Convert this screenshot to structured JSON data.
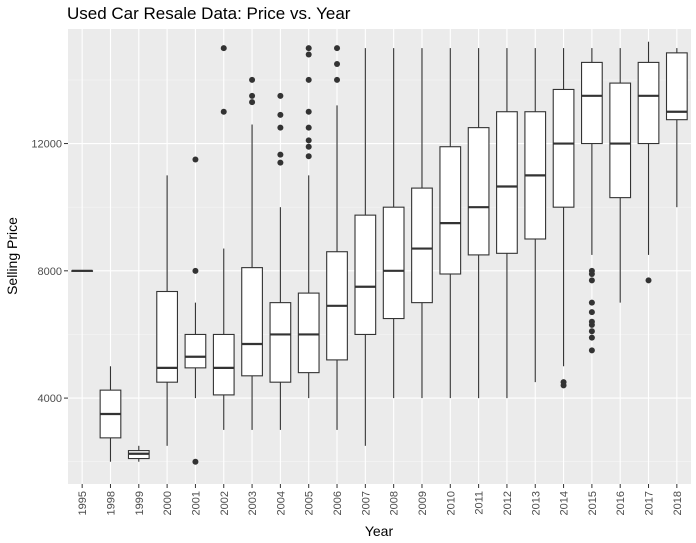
{
  "chart_data": {
    "type": "boxplot",
    "title": "Used Car Resale Data: Price vs. Year",
    "xlabel": "Year",
    "ylabel": "Selling Price",
    "ylim": [
      1300,
      15600
    ],
    "yticks": [
      4000,
      8000,
      12000
    ],
    "grid": true,
    "categories": [
      "1995",
      "1998",
      "1999",
      "2000",
      "2001",
      "2002",
      "2003",
      "2004",
      "2005",
      "2006",
      "2007",
      "2008",
      "2009",
      "2010",
      "2011",
      "2012",
      "2013",
      "2014",
      "2015",
      "2016",
      "2017",
      "2018"
    ],
    "boxes": [
      {
        "year": "1995",
        "min": 8000,
        "q1": 8000,
        "median": 8000,
        "q3": 8000,
        "max": 8000,
        "outliers": []
      },
      {
        "year": "1998",
        "min": 2000,
        "q1": 2750,
        "median": 3500,
        "q3": 4250,
        "max": 5000,
        "outliers": []
      },
      {
        "year": "1999",
        "min": 2000,
        "q1": 2100,
        "median": 2250,
        "q3": 2350,
        "max": 2500,
        "outliers": []
      },
      {
        "year": "2000",
        "min": 2500,
        "q1": 4500,
        "median": 4950,
        "q3": 7350,
        "max": 11000,
        "outliers": []
      },
      {
        "year": "2001",
        "min": 4000,
        "q1": 4950,
        "median": 5300,
        "q3": 6000,
        "max": 7000,
        "outliers": [
          2000,
          8000,
          11500
        ]
      },
      {
        "year": "2002",
        "min": 3000,
        "q1": 4100,
        "median": 4950,
        "q3": 6000,
        "max": 8700,
        "outliers": [
          13000,
          15000
        ]
      },
      {
        "year": "2003",
        "min": 3000,
        "q1": 4700,
        "median": 5700,
        "q3": 8100,
        "max": 12600,
        "outliers": [
          13300,
          13500,
          14000
        ]
      },
      {
        "year": "2004",
        "min": 3000,
        "q1": 4500,
        "median": 6000,
        "q3": 7000,
        "max": 10000,
        "outliers": [
          11400,
          11650,
          12500,
          12900,
          13500
        ]
      },
      {
        "year": "2005",
        "min": 4000,
        "q1": 4800,
        "median": 6000,
        "q3": 7300,
        "max": 11000,
        "outliers": [
          11600,
          11900,
          12100,
          12500,
          13000,
          14000,
          14800,
          15000
        ]
      },
      {
        "year": "2006",
        "min": 3000,
        "q1": 5200,
        "median": 6900,
        "q3": 8600,
        "max": 13200,
        "outliers": [
          14000,
          14500,
          15000
        ]
      },
      {
        "year": "2007",
        "min": 2500,
        "q1": 6000,
        "median": 7500,
        "q3": 9750,
        "max": 15000,
        "outliers": []
      },
      {
        "year": "2008",
        "min": 4000,
        "q1": 6500,
        "median": 8000,
        "q3": 10000,
        "max": 15000,
        "outliers": []
      },
      {
        "year": "2009",
        "min": 4000,
        "q1": 7000,
        "median": 8700,
        "q3": 10600,
        "max": 15000,
        "outliers": []
      },
      {
        "year": "2010",
        "min": 4000,
        "q1": 7900,
        "median": 9500,
        "q3": 11900,
        "max": 15000,
        "outliers": []
      },
      {
        "year": "2011",
        "min": 4000,
        "q1": 8500,
        "median": 10000,
        "q3": 12500,
        "max": 15000,
        "outliers": []
      },
      {
        "year": "2012",
        "min": 4000,
        "q1": 8550,
        "median": 10650,
        "q3": 13000,
        "max": 15000,
        "outliers": []
      },
      {
        "year": "2013",
        "min": 4500,
        "q1": 9000,
        "median": 11000,
        "q3": 13000,
        "max": 15000,
        "outliers": []
      },
      {
        "year": "2014",
        "min": 5000,
        "q1": 10000,
        "median": 12000,
        "q3": 13700,
        "max": 15000,
        "outliers": [
          4400,
          4500
        ]
      },
      {
        "year": "2015",
        "min": 8500,
        "q1": 12000,
        "median": 13500,
        "q3": 14550,
        "max": 15000,
        "outliers": [
          5500,
          5900,
          6100,
          6300,
          6400,
          6700,
          7000,
          7700,
          7900,
          8000
        ]
      },
      {
        "year": "2016",
        "min": 7000,
        "q1": 10300,
        "median": 12000,
        "q3": 13900,
        "max": 15000,
        "outliers": []
      },
      {
        "year": "2017",
        "min": 8500,
        "q1": 12000,
        "median": 13500,
        "q3": 14550,
        "max": 15200,
        "outliers": [
          7700
        ]
      },
      {
        "year": "2018",
        "min": 10000,
        "q1": 12750,
        "median": 13000,
        "q3": 14850,
        "max": 15000,
        "outliers": []
      }
    ]
  }
}
